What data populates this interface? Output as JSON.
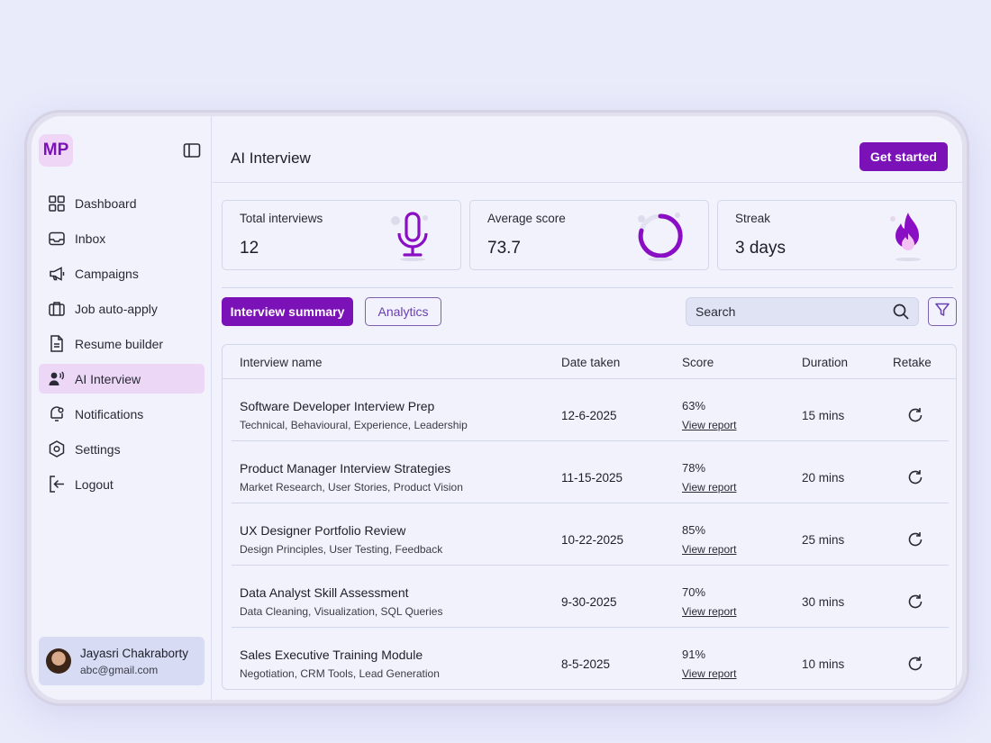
{
  "brand": {
    "logo_text": "MP"
  },
  "sidebar": {
    "items": [
      {
        "label": "Dashboard",
        "icon": "grid-icon"
      },
      {
        "label": "Inbox",
        "icon": "inbox-icon"
      },
      {
        "label": "Campaigns",
        "icon": "megaphone-icon"
      },
      {
        "label": "Job auto-apply",
        "icon": "briefcase-icon"
      },
      {
        "label": "Resume builder",
        "icon": "document-icon"
      },
      {
        "label": "AI Interview",
        "icon": "user-voice-icon",
        "active": true
      },
      {
        "label": "Notifications",
        "icon": "bell-icon"
      },
      {
        "label": "Settings",
        "icon": "hexagon-settings-icon"
      },
      {
        "label": "Logout",
        "icon": "logout-icon"
      }
    ],
    "user": {
      "name": "Jayasri Chakraborty",
      "email": "abc@gmail.com"
    }
  },
  "header": {
    "title": "AI Interview",
    "cta_label": "Get started"
  },
  "stats": [
    {
      "label": "Total interviews",
      "value": "12",
      "icon": "microphone-icon"
    },
    {
      "label": "Average score",
      "value": "73.7",
      "icon": "progress-ring-icon"
    },
    {
      "label": "Streak",
      "value": "3 days",
      "icon": "flame-icon"
    }
  ],
  "tabs": {
    "active": "Interview summary",
    "inactive": "Analytics"
  },
  "search": {
    "placeholder": "Search"
  },
  "table": {
    "columns": {
      "name": "Interview name",
      "date": "Date taken",
      "score": "Score",
      "duration": "Duration",
      "retake": "Retake"
    },
    "report_label": "View report",
    "rows": [
      {
        "name": "Software Developer Interview Prep",
        "tags": "Technical, Behavioural, Experience, Leadership",
        "date": "12-6-2025",
        "score": "63%",
        "duration": "15 mins"
      },
      {
        "name": "Product Manager Interview Strategies",
        "tags": "Market Research, User Stories, Product Vision",
        "date": "11-15-2025",
        "score": "78%",
        "duration": "20 mins"
      },
      {
        "name": "UX Designer Portfolio Review",
        "tags": "Design Principles, User Testing, Feedback",
        "date": "10-22-2025",
        "score": "85%",
        "duration": "25 mins"
      },
      {
        "name": "Data Analyst Skill Assessment",
        "tags": "Data Cleaning, Visualization, SQL Queries",
        "date": "9-30-2025",
        "score": "70%",
        "duration": "30 mins"
      },
      {
        "name": "Sales Executive Training Module",
        "tags": "Negotiation, CRM Tools, Lead Generation",
        "date": "8-5-2025",
        "score": "91%",
        "duration": "10 mins"
      }
    ]
  },
  "colors": {
    "accent": "#7a12b8",
    "background": "#f1f2fb",
    "active_nav": "#ecd7f6"
  }
}
